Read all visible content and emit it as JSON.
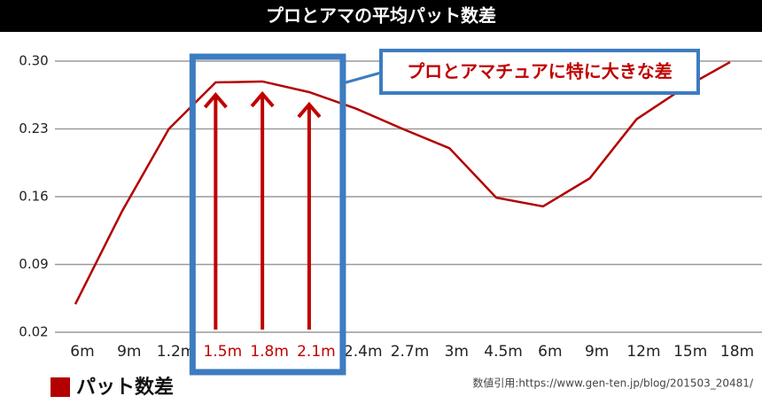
{
  "chart_data": {
    "type": "line",
    "title": "プロとアマの平均パット数差",
    "annotation": "プロとアマチュアに特に大きな差",
    "source": "数値引用:https://www.gen-ten.jp/blog/201503_20481/",
    "categories": [
      "6m",
      "9m",
      "1.2m",
      "1.5m",
      "1.8m",
      "2.1m",
      "2.4m",
      "2.7m",
      "3m",
      "4.5m",
      "6m",
      "9m",
      "12m",
      "15m",
      "18m"
    ],
    "series": [
      {
        "name": "パット数差",
        "color": "#b30000",
        "values": [
          0.049,
          0.145,
          0.23,
          0.278,
          0.279,
          0.268,
          0.251,
          0.23,
          0.21,
          0.159,
          0.15,
          0.179,
          0.24,
          0.272,
          0.299
        ]
      }
    ],
    "highlight": [
      3,
      4,
      5
    ],
    "highlight_color": "#c00000",
    "frame_color": "#3d7cc0",
    "ylim": [
      0.02,
      0.3
    ],
    "yticks": [
      0.02,
      0.09,
      0.16,
      0.23,
      {
        "value": 0.3,
        "label": "0.30"
      }
    ],
    "grid": true
  }
}
